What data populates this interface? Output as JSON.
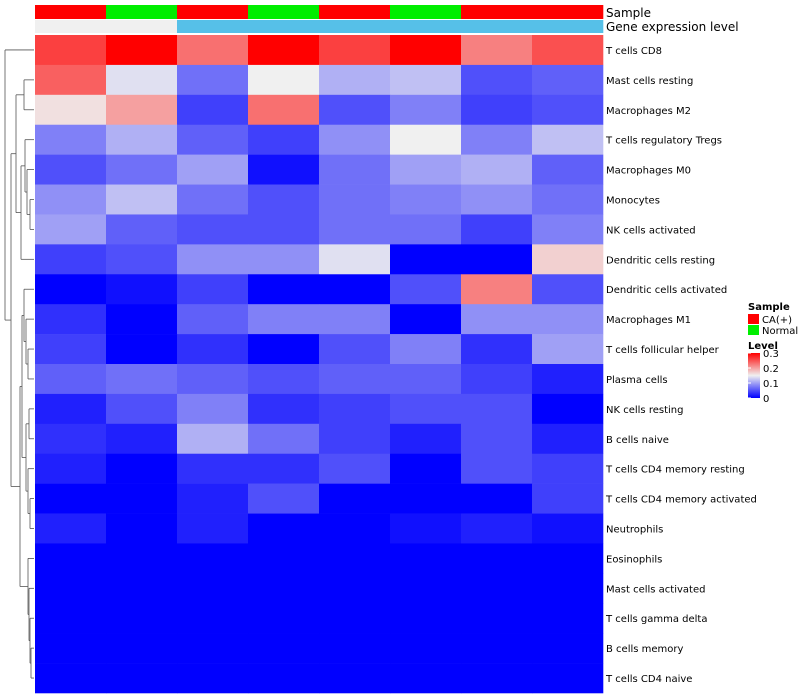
{
  "chart_data": {
    "type": "heatmap",
    "title": "",
    "annotation_tracks": [
      {
        "name": "Sample",
        "values": [
          "CA(+)",
          "Normal",
          "CA(+)",
          "Normal",
          "CA(+)",
          "Normal",
          "CA(+)",
          "CA(+)"
        ]
      },
      {
        "name": "Gene expression level",
        "values": [
          "high",
          "high",
          "low",
          "low",
          "low",
          "low",
          "low",
          "low"
        ]
      }
    ],
    "track_colors": {
      "Sample": {
        "CA(+)": "#ff0000",
        "Normal": "#00ee00"
      },
      "Gene expression level": {
        "high": "#f0f0f0",
        "low": "#56c0e8"
      }
    },
    "rows": [
      "T cells CD8",
      "Mast cells resting",
      "Macrophages M2",
      "T cells regulatory  Tregs",
      "Macrophages M0",
      "Monocytes",
      "NK cells activated",
      "Dendritic cells resting",
      "Dendritic cells activated",
      "Macrophages M1",
      "T cells follicular helper",
      "Plasma cells",
      "NK cells resting",
      "B cells naive",
      "T cells CD4 memory resting",
      "T cells CD4 memory activated",
      "Neutrophils",
      "Eosinophils",
      "Mast cells activated",
      "T cells gamma delta",
      "B cells memory",
      "T cells CD4 naive"
    ],
    "values": [
      [
        0.26,
        0.3,
        0.23,
        0.3,
        0.26,
        0.3,
        0.22,
        0.25
      ],
      [
        0.24,
        0.14,
        0.07,
        0.15,
        0.11,
        0.12,
        0.05,
        0.06
      ],
      [
        0.16,
        0.2,
        0.04,
        0.23,
        0.05,
        0.08,
        0.04,
        0.05
      ],
      [
        0.08,
        0.11,
        0.06,
        0.04,
        0.09,
        0.15,
        0.08,
        0.12
      ],
      [
        0.05,
        0.07,
        0.1,
        0.01,
        0.07,
        0.1,
        0.11,
        0.06
      ],
      [
        0.09,
        0.12,
        0.07,
        0.05,
        0.07,
        0.08,
        0.09,
        0.07
      ],
      [
        0.1,
        0.06,
        0.05,
        0.05,
        0.07,
        0.07,
        0.04,
        0.08
      ],
      [
        0.04,
        0.05,
        0.09,
        0.09,
        0.14,
        0.0,
        0.0,
        0.17
      ],
      [
        0.0,
        0.01,
        0.04,
        0.0,
        0.0,
        0.05,
        0.22,
        0.05
      ],
      [
        0.03,
        0.0,
        0.06,
        0.08,
        0.08,
        0.0,
        0.09,
        0.09
      ],
      [
        0.04,
        0.0,
        0.03,
        0.0,
        0.05,
        0.08,
        0.03,
        0.1
      ],
      [
        0.06,
        0.07,
        0.06,
        0.05,
        0.06,
        0.06,
        0.04,
        0.02
      ],
      [
        0.02,
        0.05,
        0.08,
        0.03,
        0.04,
        0.05,
        0.05,
        0.0
      ],
      [
        0.03,
        0.02,
        0.11,
        0.07,
        0.04,
        0.02,
        0.05,
        0.02
      ],
      [
        0.02,
        0.0,
        0.03,
        0.03,
        0.05,
        0.0,
        0.05,
        0.04
      ],
      [
        0.0,
        0.0,
        0.02,
        0.05,
        0.0,
        0.0,
        0.0,
        0.04
      ],
      [
        0.02,
        0.0,
        0.02,
        0.0,
        0.0,
        0.01,
        0.02,
        0.01
      ],
      [
        0.0,
        0.0,
        0.0,
        0.0,
        0.0,
        0.0,
        0.0,
        0.0
      ],
      [
        0.0,
        0.0,
        0.0,
        0.0,
        0.0,
        0.0,
        0.0,
        0.0
      ],
      [
        0.0,
        0.0,
        0.0,
        0.0,
        0.0,
        0.0,
        0.0,
        0.0
      ],
      [
        0.0,
        0.0,
        0.0,
        0.0,
        0.0,
        0.0,
        0.0,
        0.0
      ],
      [
        0.0,
        0.0,
        0.0,
        0.0,
        0.0,
        0.0,
        0.0,
        0.0
      ]
    ],
    "color_scale": {
      "low": "#0000ff",
      "mid": "#f0f0f0",
      "high": "#ff0000",
      "min": 0,
      "max": 0.3
    },
    "row_dendrogram": true,
    "legend": {
      "position": "right",
      "sample_title": "Sample",
      "sample_entries": [
        "CA(+)",
        "Normal"
      ],
      "level_title": "Level",
      "level_ticks": [
        "0.3",
        "0.2",
        "0.1",
        "0"
      ]
    }
  }
}
